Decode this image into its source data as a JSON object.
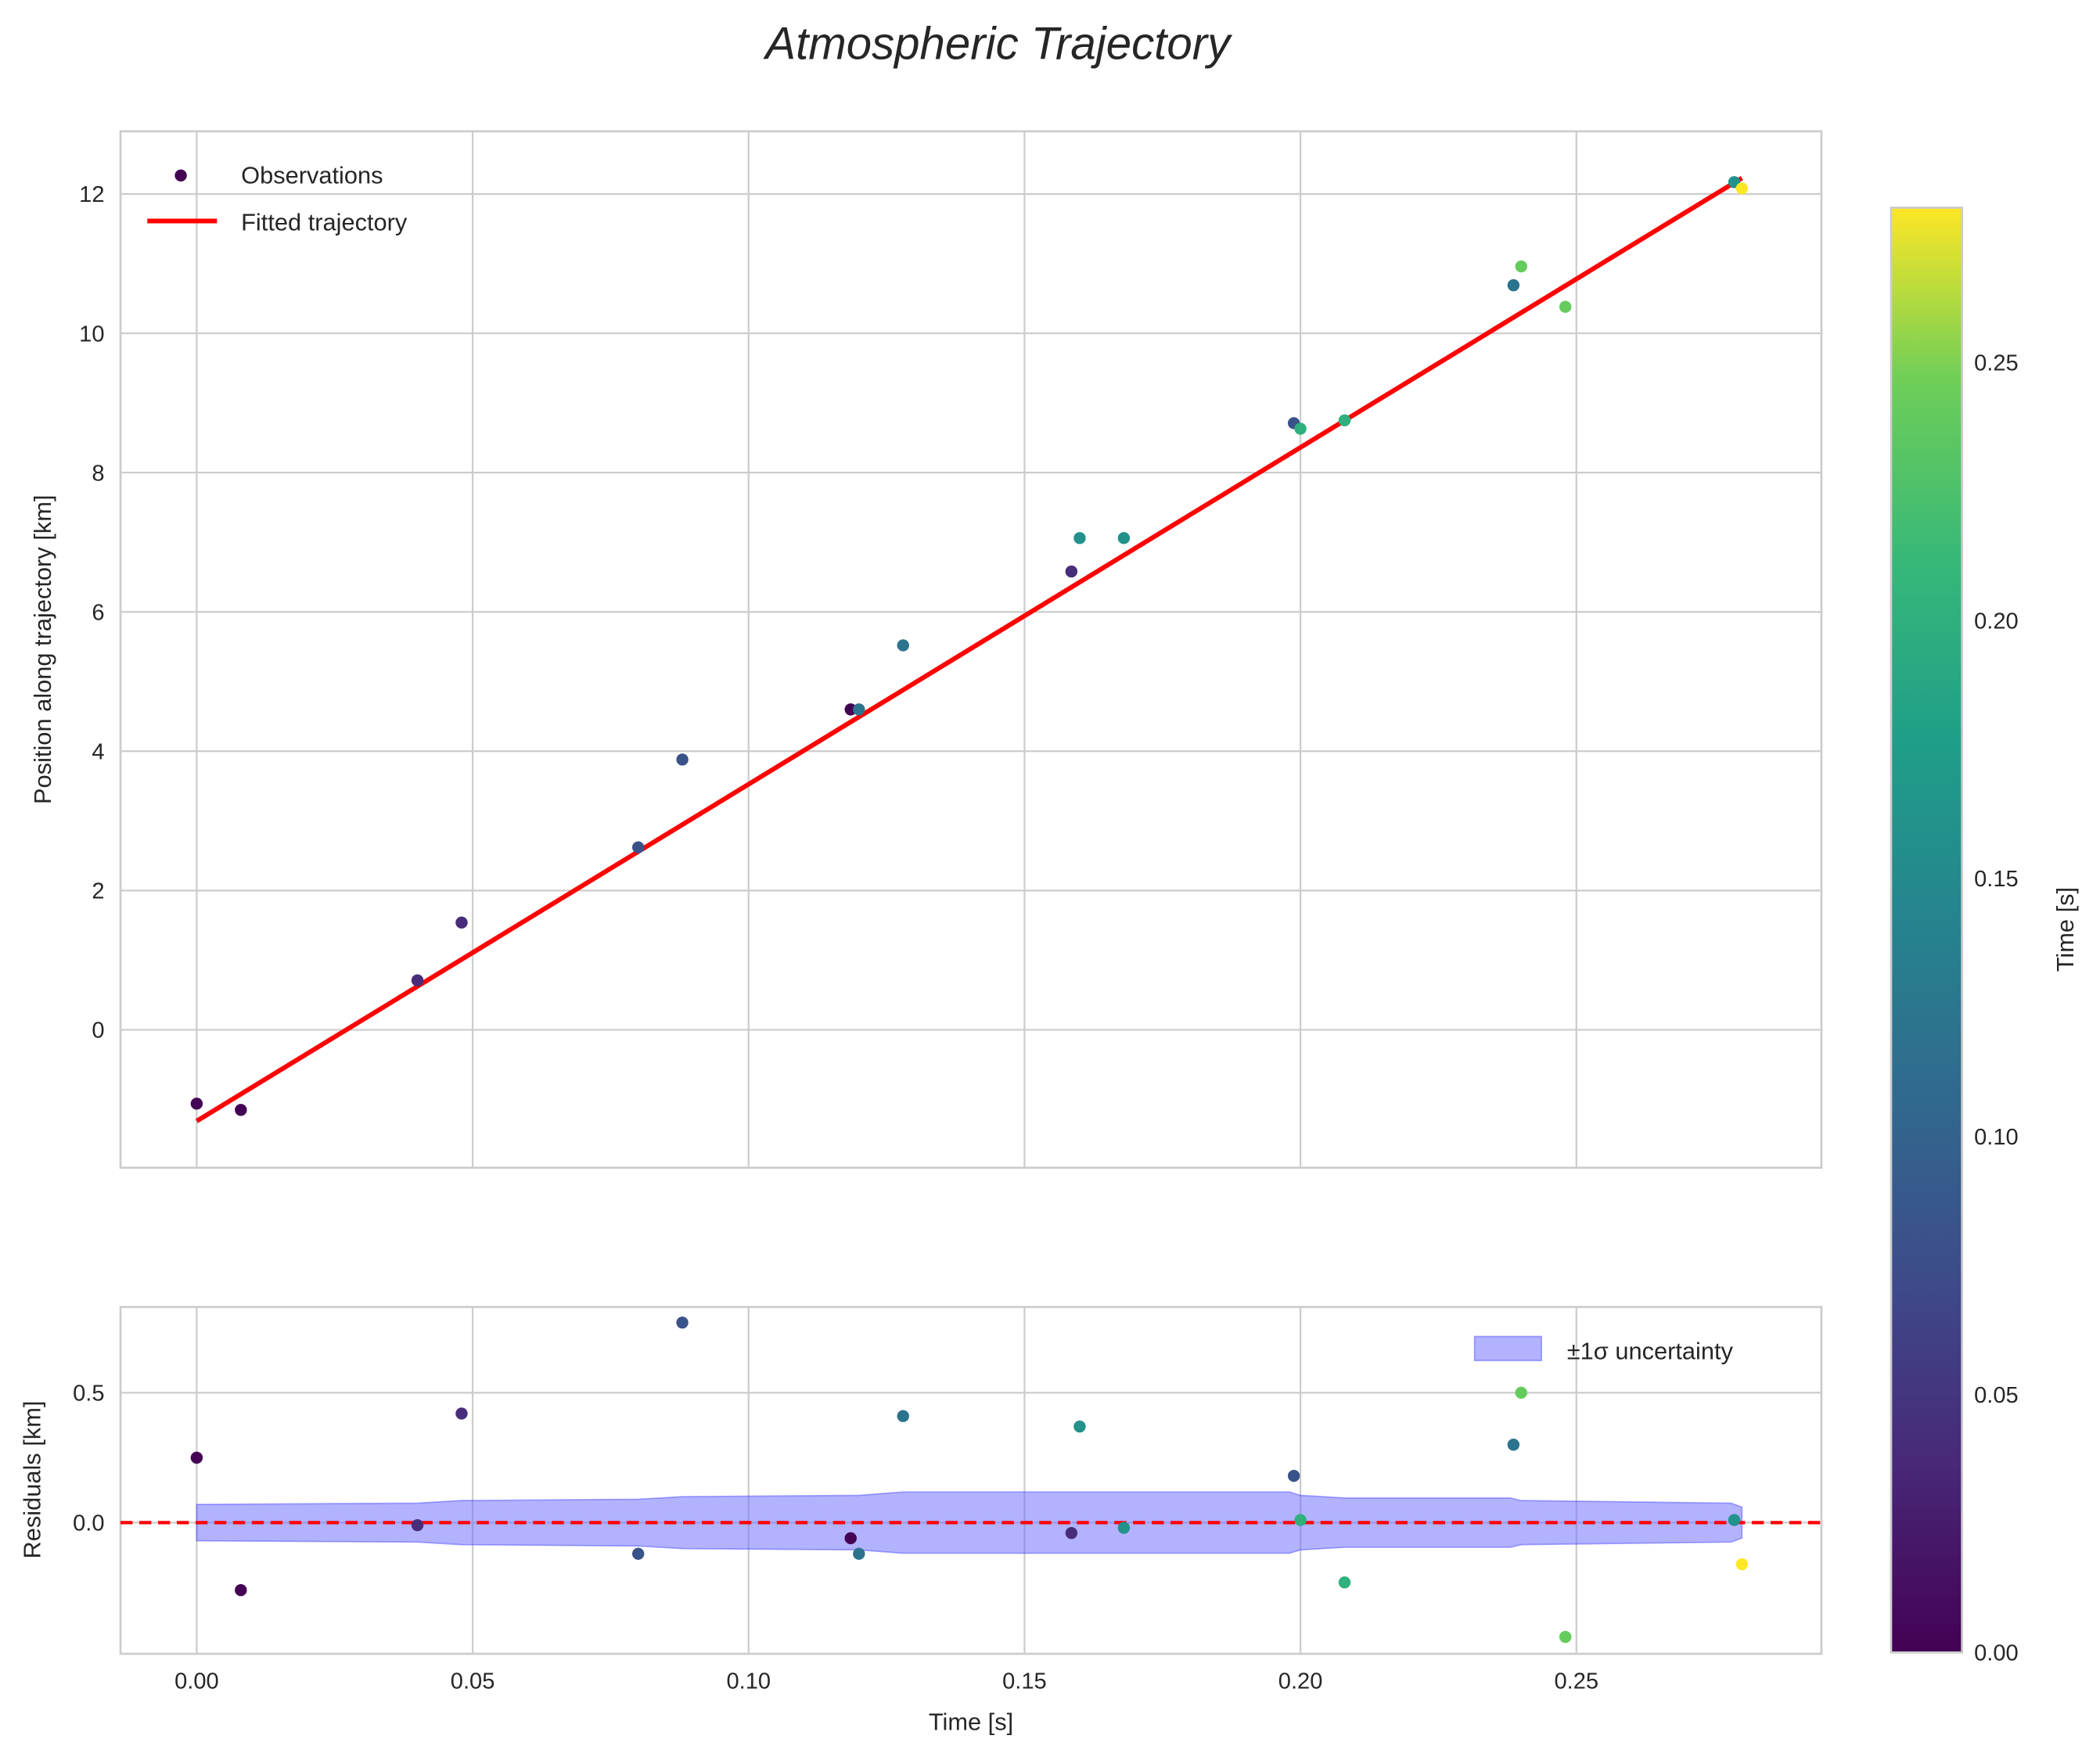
{
  "chart_data": [
    {
      "type": "scatter",
      "title": "Atmospheric Trajectory",
      "xlabel": "",
      "ylabel": "Position along trajectory [km]",
      "xlim": [
        -0.0138,
        0.2944
      ],
      "ylim": [
        -1.98,
        12.9
      ],
      "xticks": [
        0.0,
        0.05,
        0.1,
        0.15,
        0.2,
        0.25
      ],
      "yticks": [
        0,
        2,
        4,
        6,
        8,
        10,
        12
      ],
      "yticklabels": [
        "0",
        "2",
        "4",
        "6",
        "8",
        "10",
        "12"
      ],
      "grid": true,
      "legend": {
        "placement": "top-left",
        "entries": [
          "Observations",
          "Fitted trajectory"
        ]
      },
      "observations": {
        "x": [
          0.0,
          0.008,
          0.04,
          0.048,
          0.08,
          0.088,
          0.1185,
          0.12,
          0.128,
          0.1585,
          0.16,
          0.168,
          0.1988,
          0.2,
          0.208,
          0.2386,
          0.24,
          0.248,
          0.2786,
          0.28
        ],
        "y": [
          -1.06,
          -1.15,
          0.71,
          1.54,
          2.62,
          3.88,
          4.6,
          4.6,
          5.52,
          6.58,
          7.06,
          7.06,
          8.71,
          8.63,
          8.75,
          10.69,
          10.96,
          10.38,
          12.17,
          12.08
        ],
        "color_value": [
          0.0,
          0.0,
          0.04,
          0.04,
          0.08,
          0.08,
          0.0,
          0.12,
          0.12,
          0.04,
          0.16,
          0.16,
          0.08,
          0.2,
          0.2,
          0.12,
          0.24,
          0.24,
          0.16,
          0.28
        ]
      },
      "fit": {
        "name": "Fitted trajectory",
        "x": [
          0.0,
          0.28
        ],
        "y": [
          -1.31,
          12.23
        ],
        "color": "#ff0000"
      }
    },
    {
      "type": "scatter",
      "title": "",
      "xlabel": "Time [s]",
      "ylabel": "Residuals [km]",
      "xlim": [
        -0.0138,
        0.2944
      ],
      "ylim": [
        -0.505,
        0.83
      ],
      "xticks": [
        0.0,
        0.05,
        0.1,
        0.15,
        0.2,
        0.25
      ],
      "xticklabels": [
        "0.00",
        "0.05",
        "0.10",
        "0.15",
        "0.20",
        "0.25"
      ],
      "yticks": [
        0.0,
        0.5
      ],
      "yticklabels": [
        "0.0",
        "0.5"
      ],
      "grid": true,
      "legend": {
        "placement": "top-right",
        "entries": [
          "±1σ uncertainty"
        ]
      },
      "residuals": {
        "x": [
          0.0,
          0.008,
          0.04,
          0.048,
          0.08,
          0.088,
          0.1185,
          0.12,
          0.128,
          0.1585,
          0.16,
          0.168,
          0.1988,
          0.2,
          0.208,
          0.2386,
          0.24,
          0.248,
          0.2786,
          0.28
        ],
        "y": [
          0.25,
          -0.26,
          -0.01,
          0.42,
          -0.12,
          0.77,
          -0.06,
          -0.12,
          0.41,
          -0.04,
          0.37,
          -0.02,
          0.18,
          0.01,
          -0.23,
          0.3,
          0.5,
          -0.44,
          0.01,
          -0.16
        ],
        "color_value": [
          0.0,
          0.0,
          0.04,
          0.04,
          0.08,
          0.08,
          0.0,
          0.12,
          0.12,
          0.04,
          0.16,
          0.16,
          0.08,
          0.2,
          0.2,
          0.12,
          0.24,
          0.24,
          0.16,
          0.28
        ]
      },
      "uncertainty_band": {
        "x": [
          0.0,
          0.04,
          0.048,
          0.08,
          0.088,
          0.12,
          0.128,
          0.1585,
          0.198,
          0.2,
          0.208,
          0.238,
          0.24,
          0.278,
          0.28
        ],
        "half_width": [
          0.07,
          0.075,
          0.085,
          0.09,
          0.1,
          0.105,
          0.118,
          0.118,
          0.118,
          0.105,
          0.095,
          0.095,
          0.085,
          0.075,
          0.06
        ],
        "color": "#6666ff"
      },
      "zero_line": {
        "y": 0.0,
        "color": "#ff0000",
        "style": "dashed"
      }
    }
  ],
  "colorbar": {
    "label": "Time [s]",
    "range": [
      0.0,
      0.28
    ],
    "ticks": [
      0.0,
      0.05,
      0.1,
      0.15,
      0.2,
      0.25
    ],
    "ticklabels": [
      "0.00",
      "0.05",
      "0.10",
      "0.15",
      "0.20",
      "0.25"
    ],
    "colormap": "viridis"
  }
}
